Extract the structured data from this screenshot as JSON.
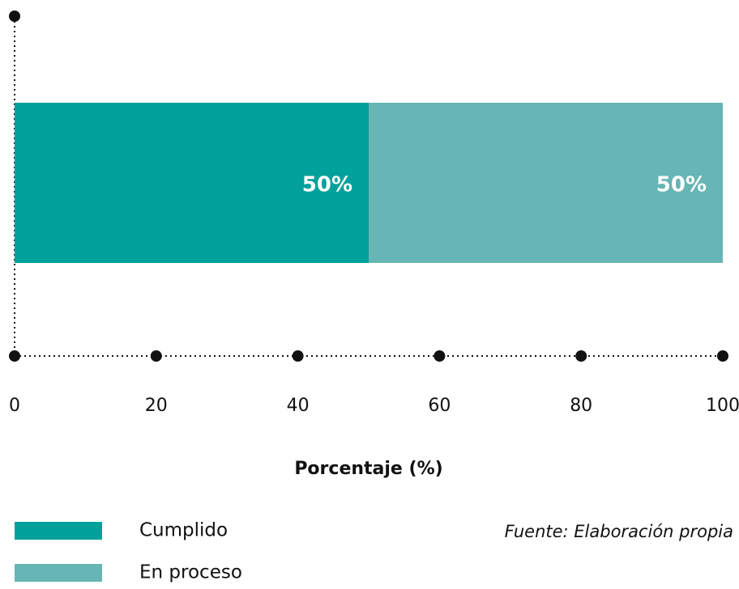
{
  "chart_data": {
    "type": "bar",
    "orientation": "horizontal",
    "stacked": true,
    "categories": [
      null
    ],
    "series": [
      {
        "name": "Cumplido",
        "color": "#00a19a",
        "values": [
          50
        ],
        "value_labels": [
          "50%"
        ]
      },
      {
        "name": "En proceso",
        "color": "#67b5b5",
        "values": [
          50
        ],
        "value_labels": [
          "50%"
        ]
      }
    ],
    "xlim": [
      0,
      100
    ],
    "xticks": [
      0,
      20,
      40,
      60,
      80,
      100
    ],
    "x_label": "Porcentaje (%)",
    "source": "Fuente: Elaboración propia"
  }
}
